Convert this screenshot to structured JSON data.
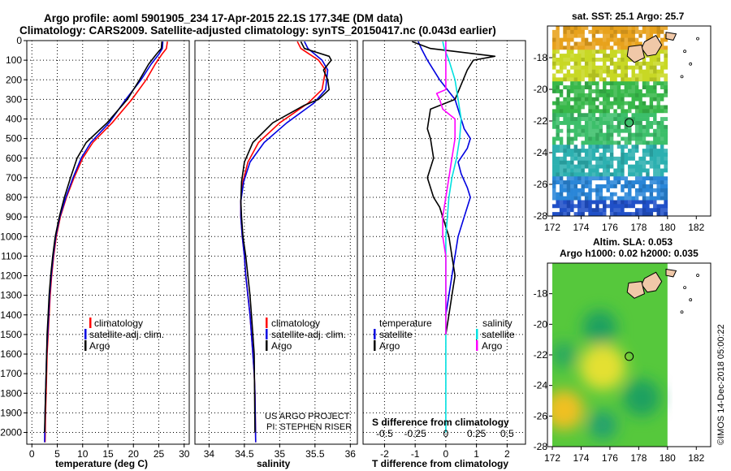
{
  "header": {
    "line1": "Argo profile: aoml 5901905_234 17-Apr-2015 22.1S 177.34E (DM data)",
    "line2": "Climatology: CARS2009. Satellite-adjusted climatology: synTS_20150417.nc (0.043d earlier)"
  },
  "colors": {
    "climatology": "#ff0000",
    "satellite": "#0000e0",
    "argo": "#000000",
    "satellite_salinity": "#00e0e0",
    "argo_salinity": "#ff00ff"
  },
  "chart_data": [
    {
      "type": "line",
      "panel": "temperature",
      "xlabel": "temperature (deg C)",
      "xlim": [
        -1,
        31
      ],
      "xticks": [
        0,
        5,
        10,
        15,
        20,
        25,
        30
      ],
      "ylim": [
        2060,
        0
      ],
      "yticks": [
        0,
        100,
        200,
        300,
        400,
        500,
        600,
        700,
        800,
        900,
        1000,
        1100,
        1200,
        1300,
        1400,
        1500,
        1600,
        1700,
        1800,
        1900,
        2000
      ],
      "legend": [
        "climatology",
        "satellite-adj. clim.",
        "Argo"
      ],
      "series": [
        {
          "name": "climatology",
          "color": "#ff0000",
          "x": [
            26.7,
            26.5,
            25.6,
            24.3,
            22.5,
            19.7,
            15.8,
            12.0,
            10.0,
            8.3,
            6.8,
            5.6,
            4.8,
            4.3,
            3.9,
            3.6,
            3.4,
            3.2,
            3.0,
            2.9,
            2.8,
            2.7,
            2.6
          ],
          "y": [
            5,
            40,
            70,
            120,
            200,
            300,
            420,
            520,
            600,
            700,
            800,
            900,
            1000,
            1100,
            1200,
            1300,
            1400,
            1500,
            1600,
            1700,
            1800,
            1900,
            2050
          ]
        },
        {
          "name": "satellite-adj. clim.",
          "color": "#0000e0",
          "x": [
            25.8,
            25.7,
            25.0,
            23.5,
            21.5,
            18.5,
            15.2,
            11.6,
            9.7,
            8.1,
            6.7,
            5.5,
            4.7,
            4.2,
            3.8,
            3.5,
            3.3,
            3.1,
            2.9,
            2.8,
            2.7,
            2.6,
            2.5
          ],
          "y": [
            5,
            40,
            70,
            120,
            200,
            300,
            420,
            520,
            600,
            700,
            800,
            900,
            1000,
            1100,
            1200,
            1300,
            1400,
            1500,
            1600,
            1700,
            1800,
            1900,
            2050
          ]
        },
        {
          "name": "Argo",
          "color": "#000000",
          "x": [
            25.6,
            25.5,
            24.5,
            23.0,
            21.2,
            18.8,
            14.8,
            10.7,
            8.9,
            7.6,
            6.4,
            5.4,
            4.6,
            4.1,
            3.7,
            3.4,
            3.2,
            3.0,
            2.9,
            2.8,
            2.7,
            2.6,
            2.5
          ],
          "y": [
            5,
            40,
            70,
            120,
            200,
            300,
            420,
            520,
            600,
            700,
            800,
            900,
            1000,
            1100,
            1200,
            1300,
            1400,
            1500,
            1600,
            1700,
            1800,
            1900,
            2000
          ]
        }
      ]
    },
    {
      "type": "line",
      "panel": "salinity",
      "xlabel": "salinity",
      "xlim": [
        33.8,
        36.1
      ],
      "xticks": [
        34,
        34.5,
        35,
        35.5,
        36
      ],
      "xticklabels": [
        "34",
        "34.5",
        "35",
        "35.5",
        "36"
      ],
      "ylim": [
        2060,
        0
      ],
      "legend": [
        "climatology",
        "satellite-adj. clim.",
        "Argo"
      ],
      "series": [
        {
          "name": "climatology",
          "color": "#ff0000",
          "x": [
            35.25,
            35.3,
            35.55,
            35.65,
            35.6,
            35.4,
            35.0,
            34.7,
            34.55,
            34.48,
            34.45,
            34.45,
            34.47,
            34.5,
            34.52,
            34.55,
            34.58,
            34.6,
            34.62,
            34.64,
            34.65,
            34.66
          ],
          "y": [
            5,
            40,
            100,
            150,
            250,
            320,
            420,
            520,
            620,
            720,
            820,
            900,
            1000,
            1100,
            1200,
            1300,
            1400,
            1500,
            1600,
            1700,
            1800,
            2050
          ]
        },
        {
          "name": "satellite-adj. clim.",
          "color": "#0000e0",
          "x": [
            35.35,
            35.4,
            35.6,
            35.68,
            35.65,
            35.48,
            35.1,
            34.78,
            34.58,
            34.49,
            34.45,
            34.45,
            34.47,
            34.5,
            34.52,
            34.55,
            34.58,
            34.6,
            34.62,
            34.64,
            34.65,
            34.66
          ],
          "y": [
            5,
            40,
            100,
            150,
            250,
            320,
            420,
            520,
            620,
            720,
            820,
            900,
            1000,
            1100,
            1200,
            1300,
            1400,
            1500,
            1600,
            1700,
            1800,
            2050
          ]
        },
        {
          "name": "Argo",
          "color": "#000000",
          "x": [
            35.3,
            35.35,
            35.7,
            35.73,
            35.62,
            35.68,
            35.7,
            35.55,
            35.35,
            34.9,
            34.62,
            34.5,
            34.46,
            34.45,
            34.46,
            34.48,
            34.52,
            34.55,
            34.58,
            34.6,
            34.62,
            34.64,
            34.65
          ],
          "y": [
            5,
            40,
            80,
            100,
            150,
            200,
            250,
            300,
            330,
            420,
            520,
            620,
            720,
            820,
            900,
            1000,
            1100,
            1200,
            1300,
            1400,
            1500,
            1600,
            2000
          ]
        }
      ]
    },
    {
      "type": "line",
      "panel": "difference",
      "xlabel": "T difference from climatology",
      "xlabel_top": "S difference from climatology",
      "xlim": [
        -2.7,
        2.6
      ],
      "xticks": [
        -2,
        -1,
        0,
        1,
        2
      ],
      "top_ticks": [
        "-0.5",
        "-0.25",
        "0",
        "0.25",
        "0.5"
      ],
      "ylim": [
        2060,
        0
      ],
      "legend_left_title": "temperature",
      "legend_right_title": "salinity",
      "legend_left": [
        "satellite",
        "Argo"
      ],
      "legend_right": [
        "satellite",
        "Argo"
      ],
      "series": [
        {
          "name": "temperature satellite",
          "color": "#0000e0",
          "x": [
            -0.9,
            -0.8,
            -0.6,
            -0.2,
            0.3,
            0.5,
            0.6,
            0.8,
            0.7,
            0.4,
            0.5,
            0.7,
            0.8,
            0.6,
            0.4,
            0.3,
            0.2,
            0.1,
            0.0
          ],
          "y": [
            5,
            40,
            100,
            200,
            300,
            400,
            450,
            500,
            550,
            620,
            680,
            750,
            800,
            900,
            1000,
            1100,
            1200,
            1300,
            1400
          ]
        },
        {
          "name": "temperature Argo",
          "color": "#000000",
          "x": [
            -1.1,
            -0.5,
            1.6,
            0.9,
            0.7,
            0.3,
            -0.5,
            -0.6,
            -0.5,
            -0.4,
            -0.6,
            -0.4,
            -0.2,
            -0.1,
            0.1,
            0.2,
            0.3,
            0.2,
            0.1,
            0.0
          ],
          "y": [
            5,
            40,
            80,
            100,
            150,
            300,
            350,
            450,
            500,
            600,
            700,
            800,
            850,
            900,
            1000,
            1100,
            1200,
            1300,
            1400,
            1500
          ]
        },
        {
          "name": "salinity satellite",
          "color": "#00e0e0",
          "x": [
            -0.1,
            -0.05,
            0.1,
            0.3,
            0.4,
            0.5,
            0.45,
            0.35,
            0.2,
            0.1,
            0.05,
            0.0,
            0.0,
            0.0,
            0.0,
            0.0
          ],
          "y": [
            5,
            40,
            100,
            200,
            300,
            400,
            500,
            600,
            700,
            800,
            900,
            1000,
            1200,
            1500,
            1800,
            2000
          ]
        },
        {
          "name": "salinity Argo",
          "color": "#ff00ff",
          "x": [
            0.0,
            0.0,
            0.0,
            -0.3,
            -0.2,
            -0.1,
            0.3,
            0.3,
            0.2,
            0.1,
            0.0,
            -0.1,
            -0.1,
            0.0,
            0.0,
            0.0
          ],
          "y": [
            5,
            40,
            250,
            270,
            300,
            350,
            400,
            500,
            600,
            700,
            800,
            900,
            1000,
            1100,
            1200,
            1500
          ]
        }
      ]
    },
    {
      "type": "heatmap",
      "panel": "sst-map",
      "title": "sat. SST: 25.1 Argo: 25.7",
      "xlim": [
        172,
        183
      ],
      "xticks": [
        172,
        174,
        176,
        178,
        180,
        182
      ],
      "ylim": [
        -28,
        -16
      ],
      "yticks": [
        -18,
        -20,
        -22,
        -24,
        -26,
        -28
      ],
      "data_extent_lon": [
        172,
        180
      ],
      "marker": {
        "lon": 177.34,
        "lat": -22.1
      },
      "color_bands": [
        {
          "lat_top": -16,
          "lat_bottom": -17.5,
          "color": "#e8a21c"
        },
        {
          "lat_top": -17.5,
          "lat_bottom": -19.5,
          "color": "#c8d824"
        },
        {
          "lat_top": -19.5,
          "lat_bottom": -21.5,
          "color": "#38b84a"
        },
        {
          "lat_top": -21.5,
          "lat_bottom": -23.5,
          "color": "#3cbf6a"
        },
        {
          "lat_top": -23.5,
          "lat_bottom": -25.5,
          "color": "#2cb0b0"
        },
        {
          "lat_top": -25.5,
          "lat_bottom": -27,
          "color": "#2a86d8"
        },
        {
          "lat_top": -27,
          "lat_bottom": -28,
          "color": "#2050c8"
        }
      ]
    },
    {
      "type": "heatmap",
      "panel": "sla-map",
      "title": "Altim. SLA: 0.053",
      "subtitle": "Argo h1000: 0.02 h2000: 0.035",
      "xlim": [
        172,
        183
      ],
      "xticks": [
        172,
        174,
        176,
        178,
        180,
        182
      ],
      "ylim": [
        -28,
        -16
      ],
      "yticks": [
        -18,
        -20,
        -22,
        -24,
        -26,
        -28
      ],
      "data_extent_lon": [
        172,
        180
      ],
      "marker": {
        "lon": 177.34,
        "lat": -22.1
      },
      "blobs": [
        {
          "lon": 175.5,
          "lat": -22.8,
          "r": 1.6,
          "color": "#e4e030"
        },
        {
          "lon": 172.8,
          "lat": -25.6,
          "r": 1.4,
          "color": "#f0c020"
        },
        {
          "lon": 175.3,
          "lat": -20.2,
          "r": 1.2,
          "color": "#1ea060"
        },
        {
          "lon": 178.2,
          "lat": -24.8,
          "r": 1.3,
          "color": "#1ea060"
        },
        {
          "lon": 175.5,
          "lat": -26.6,
          "r": 1.0,
          "color": "#22a070"
        },
        {
          "lon": 172.8,
          "lat": -22.0,
          "r": 0.9,
          "color": "#2aa860"
        }
      ],
      "base_color": "#56c83c"
    }
  ],
  "footer": {
    "project": "US ARGO PROJECT",
    "pi": "PI: STEPHEN RISER",
    "stamp": "©IMOS 14-Dec-2018 05:00:22"
  }
}
